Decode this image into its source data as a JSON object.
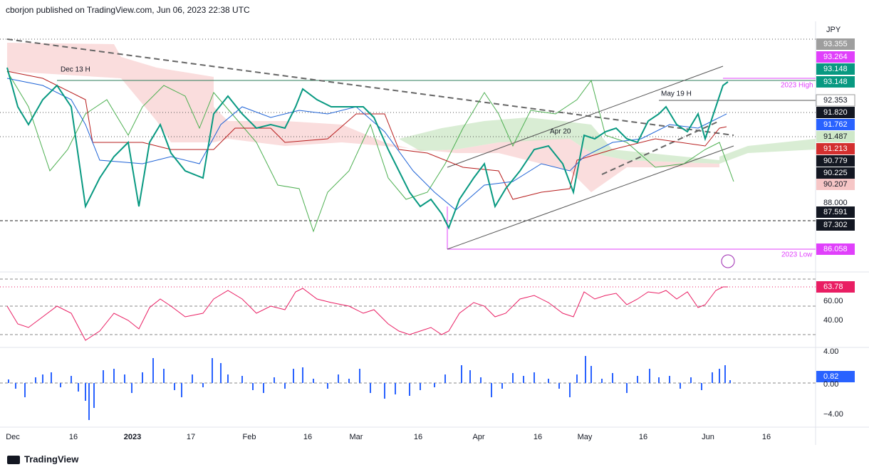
{
  "header": {
    "text": "cborjon published on TradingView.com, Jun 06, 2023 22:38 UTC"
  },
  "price_axis": {
    "currency": "JPY",
    "labels": [
      "93.355",
      "93.264",
      "93.148",
      "93.148",
      "92.353",
      "91.820",
      "91.762",
      "91.487",
      "91.213",
      "90.779",
      "90.225",
      "90.207",
      "88.000",
      "87.591",
      "87.302",
      "86.058"
    ]
  },
  "rsi_axis": {
    "labels": [
      "63.78",
      "60.00",
      "40.00"
    ]
  },
  "macd_axis": {
    "labels": [
      "4.00",
      "0.82",
      "0.00",
      "−4.00"
    ]
  },
  "x_axis": {
    "labels": [
      "Dec",
      "16",
      "2023",
      "17",
      "Feb",
      "16",
      "Mar",
      "16",
      "Apr",
      "16",
      "May",
      "16",
      "Jun",
      "16"
    ]
  },
  "annotations": [
    "Dec 13 H",
    "2023 High",
    "May 19 H",
    "Apr 20",
    "2023 Low"
  ],
  "footer": {
    "brand": "TradingView"
  }
}
